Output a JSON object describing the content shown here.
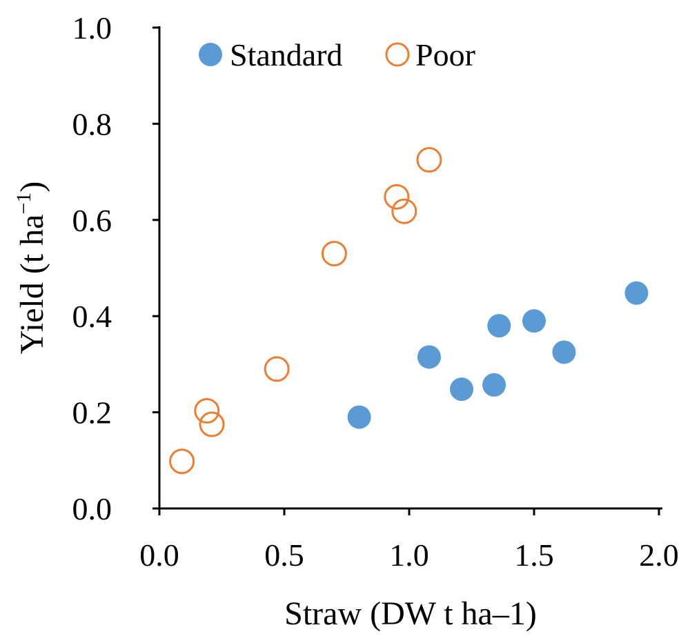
{
  "chart_data": {
    "type": "scatter",
    "xlabel": "Straw (DW t ha–1)",
    "ylabel": {
      "main": "Yield (t ha",
      "sup": "−1",
      "close": ")"
    },
    "xlim": [
      0.0,
      2.0
    ],
    "ylim": [
      0.0,
      1.0
    ],
    "xticks": [
      "0.0",
      "0.5",
      "1.0",
      "1.5",
      "2.0"
    ],
    "yticks": [
      "0.0",
      "0.2",
      "0.4",
      "0.6",
      "0.8",
      "1.0"
    ],
    "grid": false,
    "legend_position": "top-left",
    "series": [
      {
        "name": "Standard",
        "marker": "filled-circle",
        "color": "#5B9BD5",
        "points": [
          {
            "x": 0.8,
            "y": 0.19
          },
          {
            "x": 1.08,
            "y": 0.315
          },
          {
            "x": 1.21,
            "y": 0.248
          },
          {
            "x": 1.34,
            "y": 0.257
          },
          {
            "x": 1.36,
            "y": 0.38
          },
          {
            "x": 1.5,
            "y": 0.39
          },
          {
            "x": 1.62,
            "y": 0.325
          },
          {
            "x": 1.91,
            "y": 0.448
          }
        ]
      },
      {
        "name": "Poor",
        "marker": "open-circle",
        "color": "#ED7D31",
        "points": [
          {
            "x": 0.09,
            "y": 0.098
          },
          {
            "x": 0.19,
            "y": 0.203
          },
          {
            "x": 0.21,
            "y": 0.175
          },
          {
            "x": 0.47,
            "y": 0.29
          },
          {
            "x": 0.7,
            "y": 0.53
          },
          {
            "x": 0.95,
            "y": 0.648
          },
          {
            "x": 0.98,
            "y": 0.618
          },
          {
            "x": 1.08,
            "y": 0.725
          }
        ]
      }
    ]
  }
}
